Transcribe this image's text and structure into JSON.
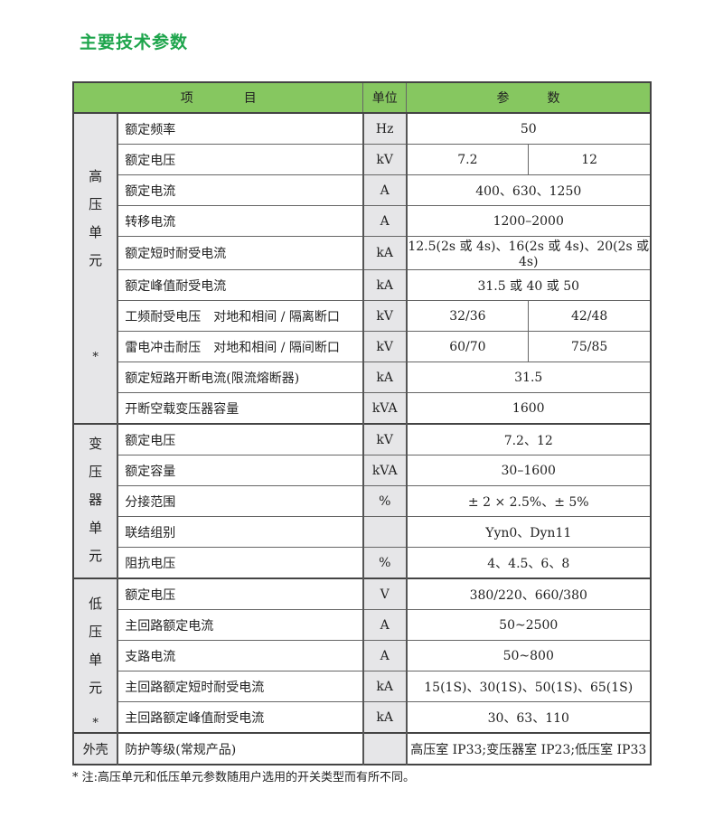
{
  "title": "主要技术参数",
  "header": {
    "item": "项　　　　目",
    "unit": "单位",
    "param": "参　　　数"
  },
  "groups": {
    "hv": {
      "chars": [
        "高",
        "压",
        "单",
        "元"
      ],
      "star": "*"
    },
    "tr": {
      "chars": [
        "变",
        "压",
        "器",
        "单",
        "元"
      ]
    },
    "lv": {
      "chars": [
        "低",
        "压",
        "单",
        "元"
      ],
      "star": "*"
    },
    "shell": {
      "label": "外壳"
    }
  },
  "rows": [
    {
      "item": "额定频率",
      "unit": "Hz",
      "value": "50"
    },
    {
      "item": "额定电压",
      "unit": "kV",
      "v1": "7.2",
      "v2": "12"
    },
    {
      "item": "额定电流",
      "unit": "A",
      "value": "400、630、1250"
    },
    {
      "item": "转移电流",
      "unit": "A",
      "value": "1200–2000"
    },
    {
      "item": "额定短时耐受电流",
      "unit": "kA",
      "value": "12.5(2s 或 4s)、16(2s 或 4s)、20(2s 或 4s)"
    },
    {
      "item": "额定峰值耐受电流",
      "unit": "kA",
      "value": "31.5 或 40 或 50"
    },
    {
      "item": "工频耐受电压　对地和相间 / 隔离断口",
      "unit": "kV",
      "v1": "32/36",
      "v2": "42/48"
    },
    {
      "item": "雷电冲击耐压　对地和相间 / 隔间断口",
      "unit": "kV",
      "v1": "60/70",
      "v2": "75/85"
    },
    {
      "item": "额定短路开断电流(限流熔断器)",
      "unit": "kA",
      "value": "31.5"
    },
    {
      "item": "开断空载变压器容量",
      "unit": "kVA",
      "value": "1600"
    },
    {
      "item": "额定电压",
      "unit": "kV",
      "value": "7.2、12"
    },
    {
      "item": "额定容量",
      "unit": "kVA",
      "value": "30–1600"
    },
    {
      "item": "分接范围",
      "unit": "%",
      "value": "± 2 × 2.5%、± 5%"
    },
    {
      "item": "联结组别",
      "unit": "",
      "value": "Yyn0、Dyn11"
    },
    {
      "item": "阻抗电压",
      "unit": "%",
      "value": "4、4.5、6、8"
    },
    {
      "item": "额定电压",
      "unit": "V",
      "value": "380/220、660/380"
    },
    {
      "item": "主回路额定电流",
      "unit": "A",
      "value": "50~2500"
    },
    {
      "item": "支路电流",
      "unit": "A",
      "value": "50~800"
    },
    {
      "item": "主回路额定短时耐受电流",
      "unit": "kA",
      "value": "15(1S)、30(1S)、50(1S)、65(1S)"
    },
    {
      "item": "主回路额定峰值耐受电流",
      "unit": "kA",
      "value": "30、63、110"
    },
    {
      "item": "防护等级(常规产品)",
      "unit": "",
      "value": "高压室 IP33;变压器室 IP23;低压室 IP33"
    }
  ],
  "note": "* 注:高压单元和低压单元参数随用户选用的开关类型而有所不同。"
}
